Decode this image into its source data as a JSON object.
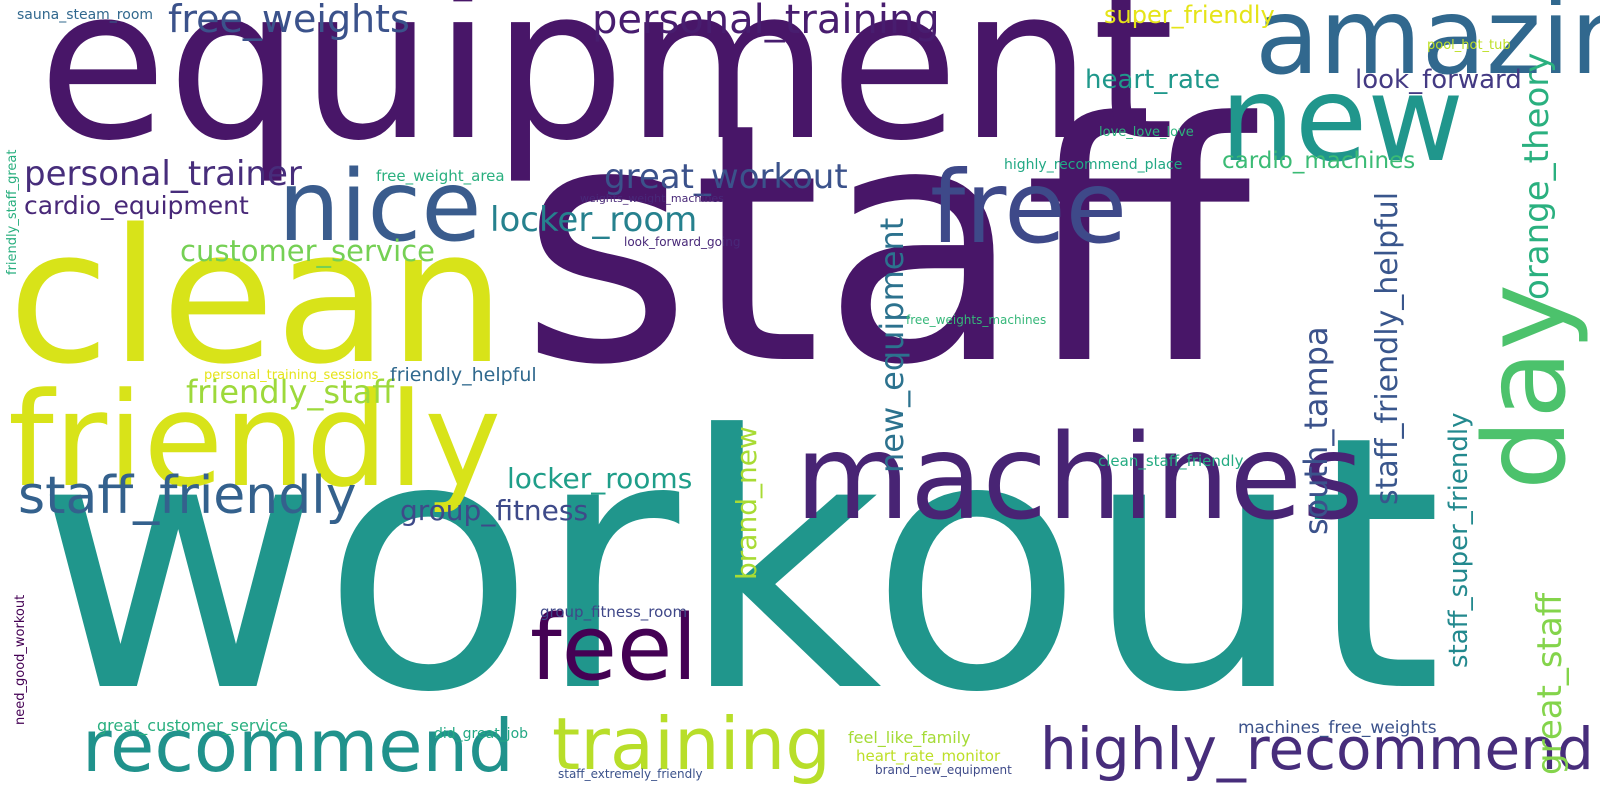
{
  "words": [
    {
      "text": "staff",
      "color": "#481668",
      "weight": 100
    },
    {
      "text": "workout",
      "color": "#20968c",
      "weight": 98
    },
    {
      "text": "equipment",
      "color": "#481668",
      "weight": 80
    },
    {
      "text": "clean",
      "color": "#d8e319",
      "weight": 68
    },
    {
      "text": "friendly",
      "color": "#d8e319",
      "weight": 52
    },
    {
      "text": "machines",
      "color": "#482474",
      "weight": 46
    },
    {
      "text": "amazing",
      "color": "#31688e",
      "weight": 44
    },
    {
      "text": "new",
      "color": "#20968c",
      "weight": 42
    },
    {
      "text": "nice",
      "color": "#3a5c8d",
      "weight": 40
    },
    {
      "text": "free",
      "color": "#3e4989",
      "weight": 38
    },
    {
      "text": "feel",
      "color": "#440154",
      "weight": 37
    },
    {
      "text": "day",
      "color": "#4cc26c",
      "weight": 34
    },
    {
      "text": "recommend",
      "color": "#20928c",
      "weight": 27
    },
    {
      "text": "training",
      "color": "#b8de29",
      "weight": 27
    },
    {
      "text": "highly_recommend",
      "color": "#472d7b",
      "weight": 25
    },
    {
      "text": "staff_friendly",
      "color": "#34618d",
      "weight": 22
    },
    {
      "text": "personal_training",
      "color": "#481d6f",
      "weight": 19
    },
    {
      "text": "free_weights",
      "color": "#3b528b",
      "weight": 18
    },
    {
      "text": "personal_trainer",
      "color": "#472d7b",
      "weight": 17
    },
    {
      "text": "great_workout",
      "color": "#3b528b",
      "weight": 16
    },
    {
      "text": "locker_room",
      "color": "#26818e",
      "weight": 16
    },
    {
      "text": "friendly_staff",
      "color": "#9dd93b",
      "weight": 16
    },
    {
      "text": "customer_service",
      "color": "#75d054",
      "weight": 16
    },
    {
      "text": "group_fitness",
      "color": "#3e4a89",
      "weight": 16
    },
    {
      "text": "locker_rooms",
      "color": "#1f9e89",
      "weight": 16
    },
    {
      "text": "heart_rate",
      "color": "#1f988b",
      "weight": 16
    },
    {
      "text": "look_forward",
      "color": "#443a83",
      "weight": 15
    },
    {
      "text": "cardio_equipment",
      "color": "#482878",
      "weight": 14
    },
    {
      "text": "cardio_machines",
      "color": "#3bbb75",
      "weight": 14
    },
    {
      "text": "super_friendly",
      "color": "#e5e419",
      "weight": 14
    },
    {
      "text": "friendly_helpful",
      "color": "#30698e",
      "weight": 13
    },
    {
      "text": "great_staff",
      "color": "#84d44b",
      "weight": 13
    },
    {
      "text": "orange_theory",
      "color": "#2ab07f",
      "weight": 13
    },
    {
      "text": "south_tampa",
      "color": "#3b528b",
      "weight": 13
    },
    {
      "text": "new_equipment",
      "color": "#2c728e",
      "weight": 12
    },
    {
      "text": "staff_friendly_helpful",
      "color": "#39568c",
      "weight": 11
    },
    {
      "text": "brand_new",
      "color": "#a8db34",
      "weight": 11
    },
    {
      "text": "staff_super_friendly",
      "color": "#23898e",
      "weight": 10
    },
    {
      "text": "great_customer_service",
      "color": "#29af7f",
      "weight": 9
    },
    {
      "text": "feel_like_family",
      "color": "#a5db36",
      "weight": 9
    },
    {
      "text": "machines_free_weights",
      "color": "#3b528b",
      "weight": 9
    },
    {
      "text": "heart_rate_monitor",
      "color": "#bddf26",
      "weight": 9
    },
    {
      "text": "clean_staff_friendly",
      "color": "#25ab82",
      "weight": 9
    },
    {
      "text": "group_fitness_room",
      "color": "#3f4788",
      "weight": 8
    },
    {
      "text": "free_weight_area",
      "color": "#2ab07f",
      "weight": 8
    },
    {
      "text": "did_great_job",
      "color": "#22a884",
      "weight": 8
    },
    {
      "text": "highly_recommend_place",
      "color": "#22a884",
      "weight": 8
    },
    {
      "text": "sauna_steam_room",
      "color": "#31688e",
      "weight": 8
    },
    {
      "text": "pool_hot_tub",
      "color": "#bddf26",
      "weight": 7
    },
    {
      "text": "love_love_love",
      "color": "#2db27d",
      "weight": 7
    },
    {
      "text": "personal_training_sessions",
      "color": "#e5e419",
      "weight": 7
    },
    {
      "text": "free_weights_machines",
      "color": "#35b779",
      "weight": 7
    },
    {
      "text": "staff_extremely_friendly",
      "color": "#3b528b",
      "weight": 7
    },
    {
      "text": "brand_new_equipment",
      "color": "#3e4a89",
      "weight": 7
    },
    {
      "text": "look_forward_going",
      "color": "#482878",
      "weight": 7
    },
    {
      "text": "weights_weight_machines",
      "color": "#482878",
      "weight": 7
    },
    {
      "text": "friendly_staff_great",
      "color": "#29af7f",
      "weight": 6
    },
    {
      "text": "need_good_workout",
      "color": "#440154",
      "weight": 6
    }
  ]
}
